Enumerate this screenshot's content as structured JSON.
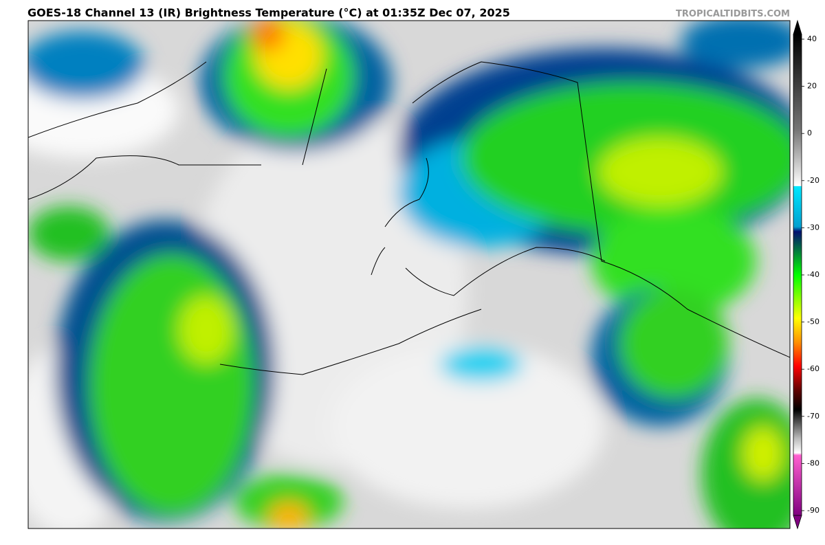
{
  "header": {
    "title": "GOES-18 Channel 13 (IR) Brightness Temperature (°C) at 01:35Z Dec 07, 2025",
    "site": "TROPICALTIDBITS.COM"
  },
  "colorbar": {
    "ticks": [
      40,
      20,
      0,
      -20,
      -30,
      -40,
      -50,
      -60,
      -70,
      -80,
      -90
    ]
  }
}
